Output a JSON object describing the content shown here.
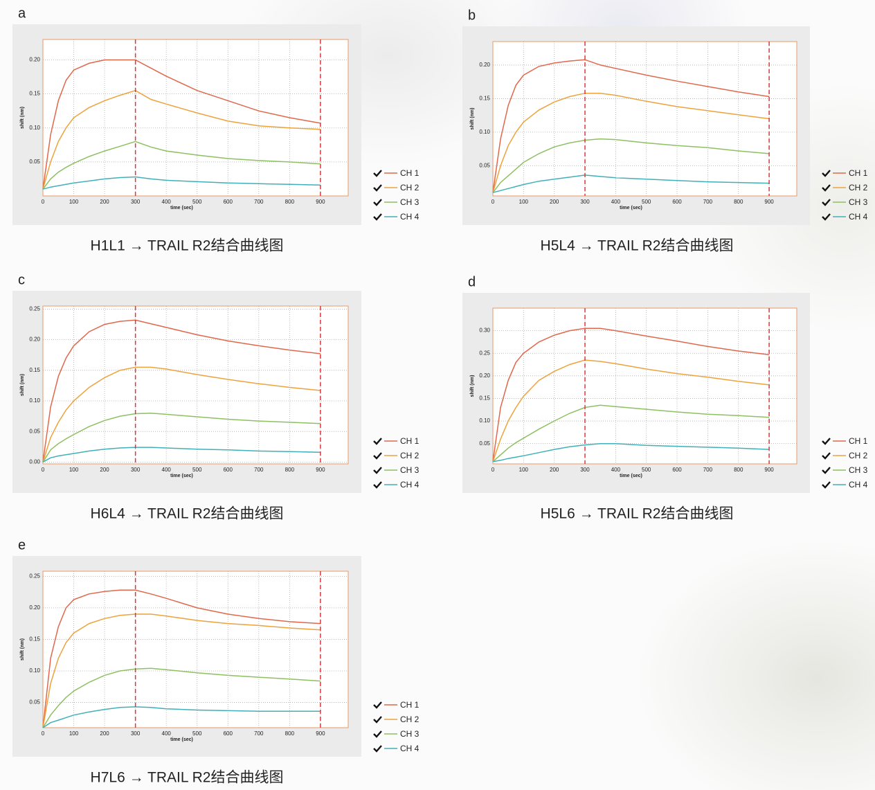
{
  "chart_data": [
    {
      "type": "line",
      "panel_label": "a",
      "caption": "H1L1 → TRAIL R2结合曲线图",
      "x_label": "time (sec)",
      "y_label": "shift (nm)",
      "x": [
        0,
        25,
        50,
        75,
        100,
        150,
        200,
        250,
        300,
        350,
        400,
        500,
        600,
        700,
        800,
        900
      ],
      "xlim": [
        0,
        990
      ],
      "xticks": [
        0,
        100,
        200,
        300,
        400,
        500,
        600,
        700,
        800,
        900
      ],
      "ylim": [
        0,
        0.23
      ],
      "yticks": [
        0.05,
        {
          "value": 0.1,
          "label": "0.10"
        },
        0.15,
        {
          "value": 0.2,
          "label": "0.20"
        }
      ],
      "grid": true,
      "vlines": [
        300,
        900
      ],
      "vline_color": "#d9363a",
      "series": [
        {
          "name": "CH 1",
          "color": "#e0674a",
          "values": [
            0.01,
            0.09,
            0.14,
            0.17,
            0.185,
            0.195,
            0.2,
            0.2,
            0.2,
            0.188,
            0.176,
            0.155,
            0.14,
            0.125,
            0.115,
            0.107
          ]
        },
        {
          "name": "CH 2",
          "color": "#eda23c",
          "values": [
            0.01,
            0.05,
            0.08,
            0.1,
            0.115,
            0.13,
            0.14,
            0.148,
            0.155,
            0.142,
            0.135,
            0.122,
            0.11,
            0.103,
            0.1,
            0.098
          ]
        },
        {
          "name": "CH 3",
          "color": "#8dc060",
          "values": [
            0.01,
            0.025,
            0.035,
            0.042,
            0.048,
            0.058,
            0.066,
            0.073,
            0.08,
            0.072,
            0.066,
            0.06,
            0.055,
            0.052,
            0.05,
            0.047
          ]
        },
        {
          "name": "CH 4",
          "color": "#3fb0b8",
          "values": [
            0.01,
            0.013,
            0.015,
            0.017,
            0.019,
            0.022,
            0.025,
            0.027,
            0.028,
            0.025,
            0.023,
            0.021,
            0.019,
            0.018,
            0.017,
            0.016
          ]
        }
      ]
    },
    {
      "type": "line",
      "panel_label": "b",
      "caption": "H5L4 → TRAIL R2结合曲线图",
      "x_label": "time (sec)",
      "y_label": "shift (nm)",
      "x": [
        0,
        25,
        50,
        75,
        100,
        150,
        200,
        250,
        300,
        350,
        400,
        500,
        600,
        700,
        800,
        900
      ],
      "xlim": [
        0,
        990
      ],
      "xticks": [
        0,
        100,
        200,
        300,
        400,
        500,
        600,
        700,
        800,
        900
      ],
      "ylim": [
        0.005,
        0.235
      ],
      "yticks": [
        0.05,
        {
          "value": 0.1,
          "label": "0.10"
        },
        0.15,
        {
          "value": 0.2,
          "label": "0.20"
        }
      ],
      "grid": true,
      "vlines": [
        300,
        900
      ],
      "vline_color": "#d9363a",
      "series": [
        {
          "name": "CH 1",
          "color": "#e0674a",
          "values": [
            0.01,
            0.09,
            0.14,
            0.17,
            0.185,
            0.198,
            0.203,
            0.206,
            0.208,
            0.2,
            0.195,
            0.185,
            0.176,
            0.168,
            0.16,
            0.153
          ]
        },
        {
          "name": "CH 2",
          "color": "#eda23c",
          "values": [
            0.01,
            0.05,
            0.08,
            0.1,
            0.115,
            0.133,
            0.145,
            0.153,
            0.158,
            0.158,
            0.155,
            0.146,
            0.138,
            0.132,
            0.126,
            0.12
          ]
        },
        {
          "name": "CH 3",
          "color": "#8dc060",
          "values": [
            0.01,
            0.025,
            0.035,
            0.045,
            0.055,
            0.068,
            0.078,
            0.084,
            0.088,
            0.09,
            0.089,
            0.084,
            0.08,
            0.077,
            0.072,
            0.068
          ]
        },
        {
          "name": "CH 4",
          "color": "#3fb0b8",
          "values": [
            0.01,
            0.013,
            0.016,
            0.019,
            0.022,
            0.027,
            0.03,
            0.033,
            0.036,
            0.034,
            0.032,
            0.03,
            0.028,
            0.026,
            0.025,
            0.024
          ]
        }
      ]
    },
    {
      "type": "line",
      "panel_label": "c",
      "caption": "H6L4 → TRAIL R2结合曲线图",
      "x_label": "time (sec)",
      "y_label": "shift (nm)",
      "x": [
        0,
        25,
        50,
        75,
        100,
        150,
        200,
        250,
        300,
        350,
        400,
        500,
        600,
        700,
        800,
        900
      ],
      "xlim": [
        0,
        990
      ],
      "xticks": [
        0,
        100,
        200,
        300,
        400,
        500,
        600,
        700,
        800,
        900
      ],
      "ylim": [
        -0.003,
        0.255
      ],
      "yticks": [
        {
          "value": 0,
          "label": "0.00"
        },
        0.05,
        {
          "value": 0.1,
          "label": "0.10"
        },
        0.15,
        {
          "value": 0.2,
          "label": "0.20"
        },
        0.25
      ],
      "grid": true,
      "vlines": [
        300,
        900
      ],
      "vline_color": "#d9363a",
      "series": [
        {
          "name": "CH 1",
          "color": "#e0674a",
          "values": [
            0,
            0.09,
            0.14,
            0.17,
            0.19,
            0.213,
            0.225,
            0.23,
            0.232,
            0.226,
            0.22,
            0.208,
            0.198,
            0.19,
            0.183,
            0.177
          ]
        },
        {
          "name": "CH 2",
          "color": "#eda23c",
          "values": [
            0,
            0.04,
            0.065,
            0.085,
            0.1,
            0.122,
            0.138,
            0.15,
            0.155,
            0.155,
            0.152,
            0.143,
            0.135,
            0.128,
            0.122,
            0.117
          ]
        },
        {
          "name": "CH 3",
          "color": "#8dc060",
          "values": [
            0,
            0.02,
            0.03,
            0.038,
            0.045,
            0.058,
            0.068,
            0.075,
            0.079,
            0.08,
            0.078,
            0.074,
            0.07,
            0.067,
            0.065,
            0.063
          ]
        },
        {
          "name": "CH 4",
          "color": "#3fb0b8",
          "values": [
            0,
            0.007,
            0.01,
            0.012,
            0.014,
            0.018,
            0.021,
            0.023,
            0.024,
            0.024,
            0.023,
            0.021,
            0.02,
            0.018,
            0.017,
            0.016
          ]
        }
      ]
    },
    {
      "type": "line",
      "panel_label": "d",
      "caption": "H5L6 → TRAIL R2结合曲线图",
      "x_label": "time (sec)",
      "y_label": "shift (nm)",
      "x": [
        0,
        25,
        50,
        75,
        100,
        150,
        200,
        250,
        300,
        350,
        400,
        500,
        600,
        700,
        800,
        900
      ],
      "xlim": [
        0,
        990
      ],
      "xticks": [
        0,
        100,
        200,
        300,
        400,
        500,
        600,
        700,
        800,
        900
      ],
      "ylim": [
        0.005,
        0.35
      ],
      "yticks": [
        0.05,
        {
          "value": 0.1,
          "label": "0.10"
        },
        0.15,
        {
          "value": 0.2,
          "label": "0.20"
        },
        0.25,
        {
          "value": 0.3,
          "label": "0.30"
        }
      ],
      "grid": true,
      "vlines": [
        300,
        900
      ],
      "vline_color": "#d9363a",
      "series": [
        {
          "name": "CH 1",
          "color": "#e0674a",
          "values": [
            0.01,
            0.13,
            0.19,
            0.23,
            0.25,
            0.275,
            0.29,
            0.3,
            0.305,
            0.305,
            0.3,
            0.288,
            0.277,
            0.265,
            0.255,
            0.247
          ]
        },
        {
          "name": "CH 2",
          "color": "#eda23c",
          "values": [
            0.01,
            0.06,
            0.1,
            0.13,
            0.155,
            0.19,
            0.21,
            0.225,
            0.235,
            0.232,
            0.227,
            0.215,
            0.205,
            0.197,
            0.188,
            0.18
          ]
        },
        {
          "name": "CH 3",
          "color": "#8dc060",
          "values": [
            0.01,
            0.025,
            0.04,
            0.052,
            0.062,
            0.082,
            0.1,
            0.117,
            0.13,
            0.135,
            0.132,
            0.126,
            0.12,
            0.115,
            0.112,
            0.108
          ]
        },
        {
          "name": "CH 4",
          "color": "#3fb0b8",
          "values": [
            0.01,
            0.013,
            0.017,
            0.02,
            0.023,
            0.03,
            0.037,
            0.043,
            0.047,
            0.05,
            0.05,
            0.046,
            0.044,
            0.042,
            0.04,
            0.037
          ]
        }
      ]
    },
    {
      "type": "line",
      "panel_label": "e",
      "caption": "H7L6 → TRAIL R2结合曲线图",
      "x_label": "time (sec)",
      "y_label": "shift (nm)",
      "x": [
        0,
        25,
        50,
        75,
        100,
        150,
        200,
        250,
        300,
        350,
        400,
        500,
        600,
        700,
        800,
        900
      ],
      "xlim": [
        0,
        990
      ],
      "xticks": [
        0,
        100,
        200,
        300,
        400,
        500,
        600,
        700,
        800,
        900
      ],
      "ylim": [
        0.01,
        0.258
      ],
      "yticks": [
        0.05,
        {
          "value": 0.1,
          "label": "0.10"
        },
        0.15,
        {
          "value": 0.2,
          "label": "0.20"
        },
        0.25
      ],
      "grid": true,
      "vlines": [
        300,
        900
      ],
      "vline_color": "#d9363a",
      "series": [
        {
          "name": "CH 1",
          "color": "#e0674a",
          "values": [
            0.01,
            0.12,
            0.17,
            0.2,
            0.213,
            0.222,
            0.226,
            0.228,
            0.228,
            0.222,
            0.215,
            0.2,
            0.19,
            0.183,
            0.178,
            0.175
          ]
        },
        {
          "name": "CH 2",
          "color": "#eda23c",
          "values": [
            0.01,
            0.08,
            0.12,
            0.145,
            0.16,
            0.175,
            0.183,
            0.188,
            0.19,
            0.19,
            0.187,
            0.18,
            0.175,
            0.172,
            0.168,
            0.165
          ]
        },
        {
          "name": "CH 3",
          "color": "#8dc060",
          "values": [
            0.01,
            0.03,
            0.045,
            0.058,
            0.068,
            0.082,
            0.093,
            0.1,
            0.103,
            0.104,
            0.102,
            0.097,
            0.093,
            0.09,
            0.087,
            0.084
          ]
        },
        {
          "name": "CH 4",
          "color": "#3fb0b8",
          "values": [
            0.01,
            0.018,
            0.022,
            0.026,
            0.03,
            0.035,
            0.039,
            0.042,
            0.043,
            0.042,
            0.04,
            0.038,
            0.037,
            0.036,
            0.036,
            0.036
          ]
        }
      ]
    }
  ]
}
